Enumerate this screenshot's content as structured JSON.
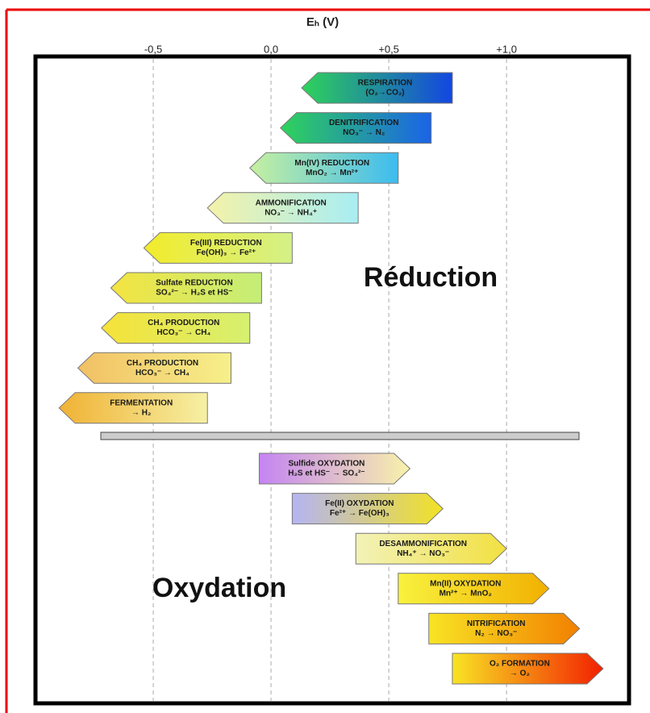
{
  "chart_data": {
    "type": "range-arrows",
    "title": "Eₕ (V)",
    "xlim": [
      -1.0,
      1.52
    ],
    "xticks": [
      {
        "value": -0.5,
        "label": "-0,5"
      },
      {
        "value": 0,
        "label": "0,0"
      },
      {
        "value": 0.5,
        "label": "+0,5"
      },
      {
        "value": 1.0,
        "label": "+1,0"
      }
    ],
    "grid": true,
    "groups": [
      {
        "name": "Réduction",
        "direction": "left",
        "arrows": [
          {
            "lines": [
              "RESPIRATION",
              "(O₂→CO₂)"
            ],
            "range": [
              0.13,
              0.77
            ],
            "colors": [
              "#2fd35a",
              "#1346e0"
            ]
          },
          {
            "lines": [
              "DENITRIFICATION",
              "NO₃⁻ → N₂"
            ],
            "range": [
              0.04,
              0.68
            ],
            "colors": [
              "#2fd35a",
              "#1a63e8"
            ]
          },
          {
            "lines": [
              "Mn(IV) REDUCTION",
              "MnO₂ → Mn²⁺"
            ],
            "range": [
              -0.09,
              0.54
            ],
            "colors": [
              "#c6f0a0",
              "#3cbcf0"
            ]
          },
          {
            "lines": [
              "AMMONIFICATION",
              "NO₃⁻ → NH₄⁺"
            ],
            "range": [
              -0.27,
              0.37
            ],
            "colors": [
              "#f4f2a8",
              "#a8eef4"
            ]
          },
          {
            "lines": [
              "Fe(III) REDUCTION",
              "Fe(OH)₃ → Fe²⁺"
            ],
            "range": [
              -0.54,
              0.09
            ],
            "colors": [
              "#f2ec2a",
              "#d4f088"
            ]
          },
          {
            "lines": [
              "Sulfate REDUCTION",
              "SO₄²⁻ → H₂S et HS⁻"
            ],
            "range": [
              -0.68,
              -0.04
            ],
            "colors": [
              "#f4e440",
              "#c4ee78"
            ]
          },
          {
            "lines": [
              "CH₄ PRODUCTION",
              "HCO₃⁻ → CH₄"
            ],
            "range": [
              -0.72,
              -0.09
            ],
            "colors": [
              "#f6e238",
              "#d6f070"
            ]
          },
          {
            "lines": [
              "CH₄ PRODUCTION",
              "HCO₃⁻ → CH₄"
            ],
            "range": [
              -0.82,
              -0.17
            ],
            "colors": [
              "#f2c064",
              "#f6f08a"
            ]
          },
          {
            "lines": [
              "FERMENTATION",
              "→ H₂"
            ],
            "range": [
              -0.9,
              -0.27
            ],
            "colors": [
              "#f0b234",
              "#f6f0a4"
            ]
          }
        ]
      },
      {
        "name": "Oxydation",
        "direction": "right",
        "arrows": [
          {
            "lines": [
              "Sulfide OXYDATION",
              "H₂S et HS⁻ → SO₄²⁻"
            ],
            "range": [
              -0.05,
              0.59
            ],
            "colors": [
              "#c484f2",
              "#f8f2aa"
            ]
          },
          {
            "lines": [
              "Fe(II) OXYDATION",
              "Fe²⁺ → Fe(OH)₃"
            ],
            "range": [
              0.09,
              0.73
            ],
            "colors": [
              "#b4b4f4",
              "#f2e224"
            ]
          },
          {
            "lines": [
              "DESAMMONIFICATION",
              "NH₄⁺ → NO₃⁻"
            ],
            "range": [
              0.36,
              1.0
            ],
            "colors": [
              "#f2f2b8",
              "#f2e040"
            ]
          },
          {
            "lines": [
              "Mn(II) OXYDATION",
              "Mn²⁺ → MnO₂"
            ],
            "range": [
              0.54,
              1.18
            ],
            "colors": [
              "#f8f23e",
              "#f2b000"
            ]
          },
          {
            "lines": [
              "NITRIFICATION",
              "N₂ → NO₃⁻"
            ],
            "range": [
              0.67,
              1.31
            ],
            "colors": [
              "#f8e424",
              "#f28000"
            ]
          },
          {
            "lines": [
              "O₂ FORMATION",
              "→ O₂"
            ],
            "range": [
              0.77,
              1.41
            ],
            "colors": [
              "#f8e424",
              "#f22000"
            ]
          }
        ]
      }
    ]
  }
}
